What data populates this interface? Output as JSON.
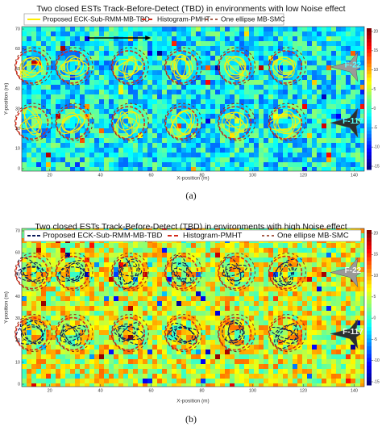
{
  "panels": [
    {
      "title": "Two closed ESTs Track-Before-Detect (TBD) in environments with low Noise effect",
      "legend": [
        "Proposed ECK-Sub-RMM-MB-TBD",
        "Histogram-PMHT",
        "One ellipse MB-SMC"
      ],
      "xlabel": "X-position (m)",
      "ylabel": "Y-position (m)",
      "xticks": [
        20,
        40,
        60,
        80,
        100,
        120,
        140
      ],
      "yticks": [
        0,
        10,
        20,
        30,
        40,
        50,
        60,
        70
      ],
      "colorbar_ticks": [
        20,
        15,
        10,
        5,
        0,
        -5,
        -10,
        -15
      ],
      "targets": [
        "F-22",
        "F-117"
      ],
      "caption": "(a)"
    },
    {
      "title": "Two closed ESTs Track-Before-Detect (TBD) in environments with high Noise effect",
      "legend": [
        "Proposed ECK-Sub-RMM-MB-TBD",
        "Histogram-PMHT",
        "One ellipse MB-SMC"
      ],
      "xlabel": "X-position (m)",
      "ylabel": "Y-position (m)",
      "xticks": [
        20,
        40,
        60,
        80,
        100,
        120,
        140
      ],
      "yticks": [
        0,
        10,
        20,
        30,
        40,
        50,
        60,
        70
      ],
      "colorbar_ticks": [
        20,
        15,
        10,
        5,
        0,
        -5,
        -10,
        -15
      ],
      "targets": [
        "F-22",
        "F-117"
      ],
      "caption": "(b)"
    }
  ]
}
